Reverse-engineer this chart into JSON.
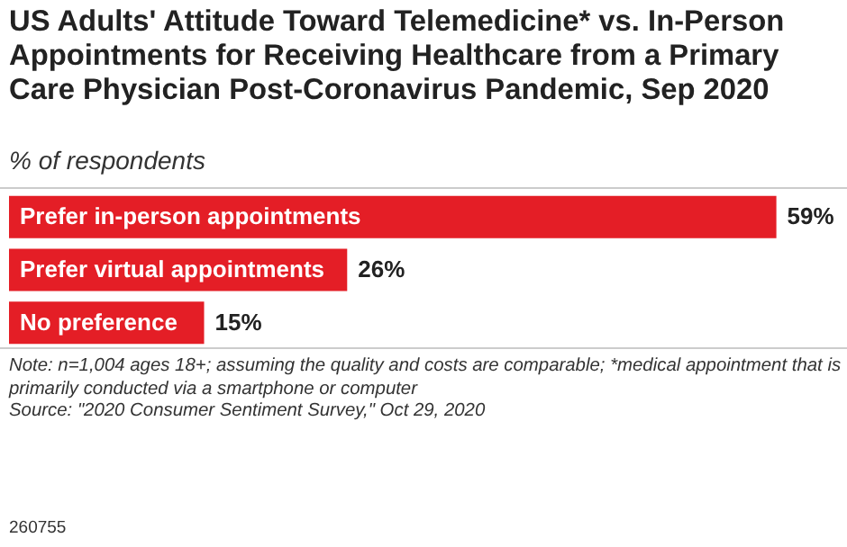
{
  "chart_data": {
    "type": "bar",
    "orientation": "horizontal",
    "title": "US Adults' Attitude Toward Telemedicine* vs. In-Person Appointments for Receiving Healthcare from a Primary Care Physician Post-Coronavirus Pandemic, Sep 2020",
    "subtitle": "% of respondents",
    "categories": [
      "Prefer in-person appointments",
      "Prefer virtual appointments",
      "No preference"
    ],
    "values": [
      59,
      26,
      15
    ],
    "value_labels": [
      "59%",
      "26%",
      "15%"
    ],
    "color": "#e41e26",
    "annotations": [
      "Note: n=1,004 ages 18+; assuming the quality and costs are comparable; *medical appointment that is primarily conducted via a smartphone or computer",
      "Source: \"2020 Consumer Sentiment Survey,\" Oct 29, 2020",
      "260755"
    ]
  }
}
